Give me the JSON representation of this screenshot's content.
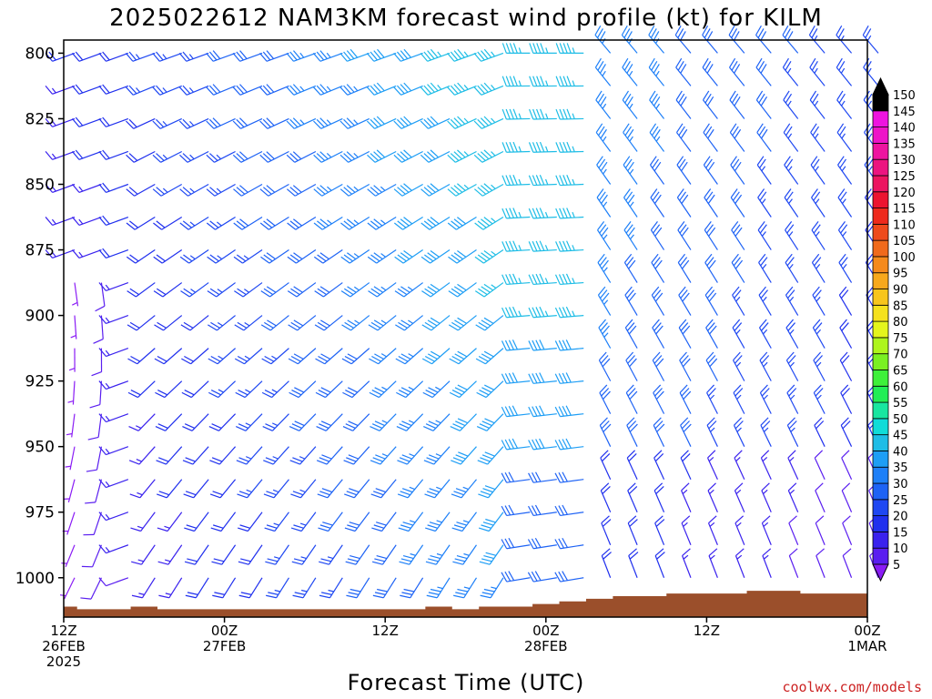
{
  "title": "2025022612 NAM3KM forecast wind profile (kt) for KILM",
  "credit": "coolwx.com/models",
  "colors": {
    "ground": "#9b4f2b",
    "barb_default": "#7a2cf0"
  },
  "chart_data": {
    "type": "wind-barb-profile",
    "title": "2025022612 NAM3KM forecast wind profile (kt) for KILM",
    "xlabel": "Forecast Time (UTC)",
    "ylabel": "",
    "y_axis": {
      "ticks": [
        800,
        825,
        850,
        875,
        900,
        925,
        950,
        975,
        1000
      ],
      "range_hpa": [
        795,
        1015
      ],
      "inverted": true
    },
    "x_axis": {
      "ticks": [
        {
          "hour": 0,
          "line1": "12Z",
          "line2": "26FEB",
          "line3": "2025"
        },
        {
          "hour": 12,
          "line1": "00Z",
          "line2": "27FEB",
          "line3": ""
        },
        {
          "hour": 24,
          "line1": "12Z",
          "line2": "",
          "line3": ""
        },
        {
          "hour": 36,
          "line1": "00Z",
          "line2": "28FEB",
          "line3": ""
        },
        {
          "hour": 48,
          "line1": "12Z",
          "line2": "",
          "line3": ""
        },
        {
          "hour": 60,
          "line1": "00Z",
          "line2": "1MAR",
          "line3": ""
        }
      ],
      "range_hours": [
        0,
        60
      ]
    },
    "colorbar": {
      "units": "kt",
      "levels": [
        5,
        10,
        15,
        20,
        25,
        30,
        35,
        40,
        45,
        50,
        55,
        60,
        65,
        70,
        75,
        80,
        85,
        90,
        95,
        100,
        105,
        110,
        115,
        120,
        125,
        130,
        135,
        140,
        145,
        150
      ],
      "colors": [
        "#8a1cf5",
        "#5a1ef0",
        "#3a22ee",
        "#2030ee",
        "#1f48f2",
        "#1e63f5",
        "#1e80f8",
        "#1e9ef5",
        "#1ebde6",
        "#10dcd8",
        "#18e6a0",
        "#22ee55",
        "#3ef03a",
        "#7af022",
        "#aef51c",
        "#e4f51c",
        "#f5e11c",
        "#f7c51c",
        "#f7a81c",
        "#f58a1c",
        "#f06a1c",
        "#ee4a1c",
        "#ee2a1c",
        "#ec1430",
        "#ec1460",
        "#ec1480",
        "#ee14a0",
        "#ee14c8",
        "#ee14e0",
        "#000000"
      ]
    },
    "wind_series": {
      "step_hours": 2,
      "pressure_levels": [
        800,
        812.5,
        825,
        837.5,
        850,
        862.5,
        875,
        887.5,
        900,
        912.5,
        925,
        937.5,
        950,
        962.5,
        975,
        987.5,
        1000,
        1012.5
      ],
      "description": "Wind barbs: direction in degrees (meteorological, from), speed in kt, per forecast hour (0..60 every 2h) and pressure level."
    },
    "surface_pressure_hpa": [
      1011,
      1012,
      1012,
      1011,
      1012,
      1012,
      1012,
      1012,
      1012,
      1012,
      1012,
      1012,
      1012,
      1012,
      1011,
      1012,
      1011,
      1011,
      1010,
      1009,
      1008,
      1007,
      1007,
      1006,
      1006,
      1006,
      1005,
      1005,
      1006,
      1006,
      1006
    ]
  }
}
